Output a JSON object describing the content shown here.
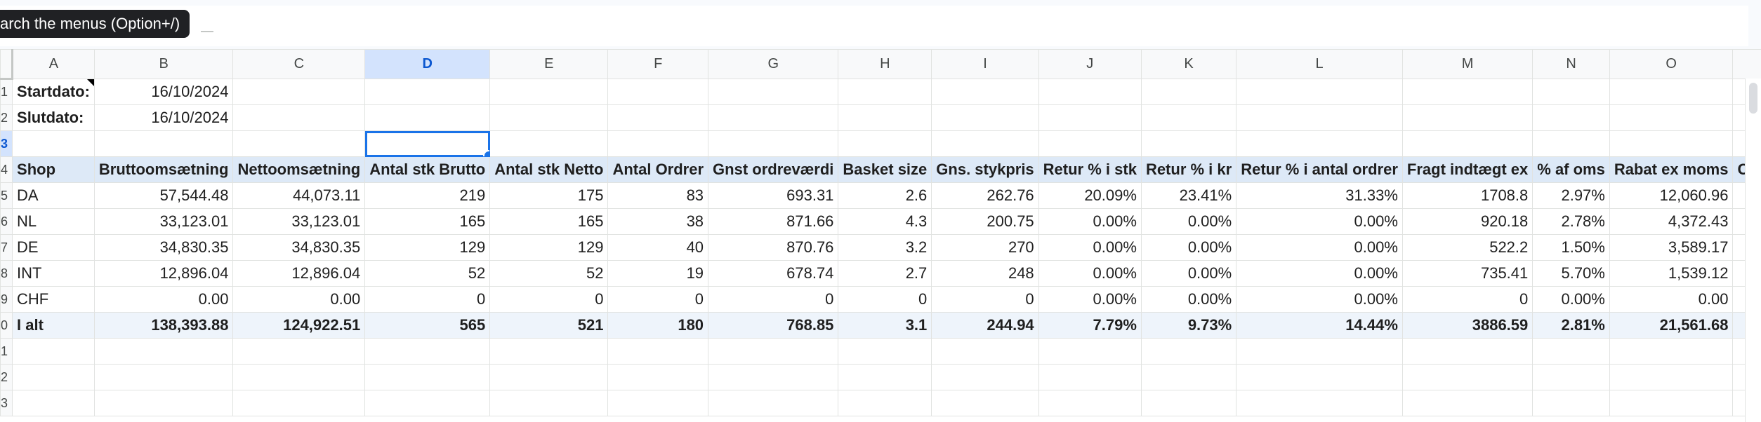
{
  "tooltip": "arch the menus (Option+/)",
  "columns": [
    "A",
    "B",
    "C",
    "D",
    "E",
    "F",
    "G",
    "H",
    "I",
    "J",
    "K",
    "L",
    "M",
    "N",
    "O",
    ""
  ],
  "selected_column": "D",
  "row_numbers": [
    "1",
    "2",
    "3",
    "4",
    "5",
    "6",
    "7",
    "8",
    "9",
    "0",
    "1",
    "2",
    "3"
  ],
  "selected_row": "3",
  "cells": {
    "start_label": "Startdato:",
    "start_value": "16/10/2024",
    "end_label": "Slutdato:",
    "end_value": "16/10/2024"
  },
  "headers": [
    "Shop",
    "Bruttoomsætning",
    "Nettoomsætning",
    "Antal stk Brutto",
    "Antal stk Netto",
    "Antal Ordrer",
    "Gnst ordreværdi",
    "Basket size",
    "Gns. stykpris",
    "Retur % i stk",
    "Retur % i kr",
    "Retur % i antal ordrer",
    "Fragt indtægt ex",
    "% af oms",
    "Rabat ex moms",
    "Car"
  ],
  "rows": [
    [
      "DA",
      "57,544.48",
      "44,073.11",
      "219",
      "175",
      "83",
      "693.31",
      "2.6",
      "262.76",
      "20.09%",
      "23.41%",
      "31.33%",
      "1708.8",
      "2.97%",
      "12,060.96",
      ""
    ],
    [
      "NL",
      "33,123.01",
      "33,123.01",
      "165",
      "165",
      "38",
      "871.66",
      "4.3",
      "200.75",
      "0.00%",
      "0.00%",
      "0.00%",
      "920.18",
      "2.78%",
      "4,372.43",
      ""
    ],
    [
      "DE",
      "34,830.35",
      "34,830.35",
      "129",
      "129",
      "40",
      "870.76",
      "3.2",
      "270",
      "0.00%",
      "0.00%",
      "0.00%",
      "522.2",
      "1.50%",
      "3,589.17",
      ""
    ],
    [
      "INT",
      "12,896.04",
      "12,896.04",
      "52",
      "52",
      "19",
      "678.74",
      "2.7",
      "248",
      "0.00%",
      "0.00%",
      "0.00%",
      "735.41",
      "5.70%",
      "1,539.12",
      ""
    ],
    [
      "CHF",
      "0.00",
      "0.00",
      "0",
      "0",
      "0",
      "0",
      "0",
      "0",
      "0.00%",
      "0.00%",
      "0.00%",
      "0",
      "0.00%",
      "0.00",
      ""
    ]
  ],
  "total": [
    "I alt",
    "138,393.88",
    "124,922.51",
    "565",
    "521",
    "180",
    "768.85",
    "3.1",
    "244.94",
    "7.79%",
    "9.73%",
    "14.44%",
    "3886.59",
    "2.81%",
    "21,561.68",
    ""
  ]
}
